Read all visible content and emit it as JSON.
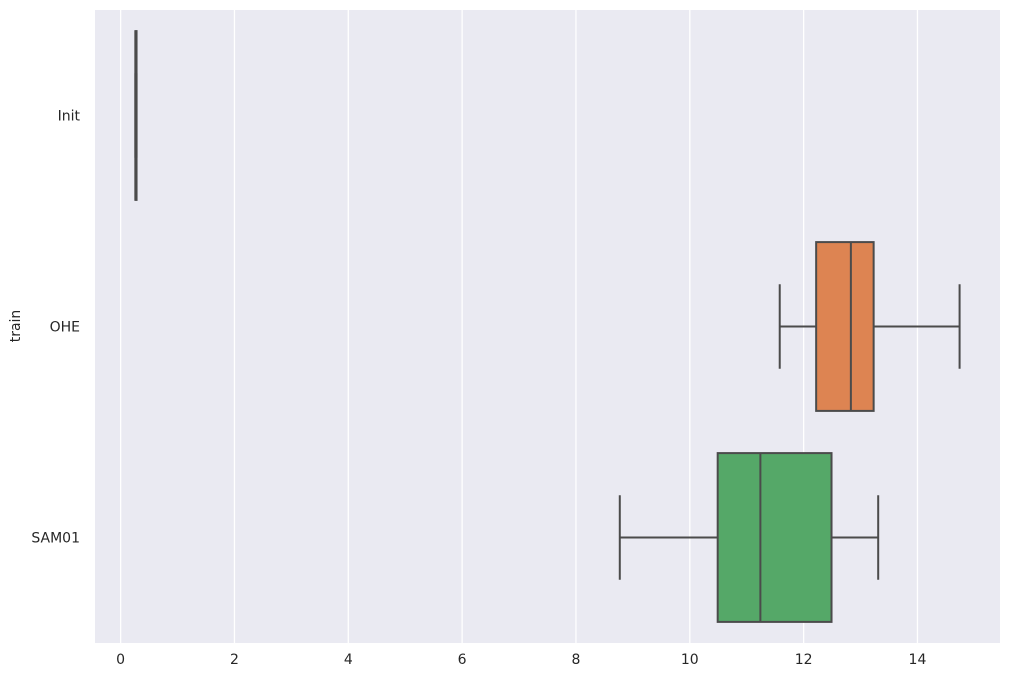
{
  "chart_data": {
    "type": "box",
    "orientation": "horizontal",
    "title": "",
    "xlabel": "",
    "ylabel": "train",
    "xlim": [
      -0.45,
      15.45
    ],
    "xticks": [
      0,
      2,
      4,
      6,
      8,
      10,
      12,
      14
    ],
    "grid": true,
    "legend": "none",
    "categories": [
      "Init",
      "OHE",
      "SAM01"
    ],
    "boxes": [
      {
        "category": "Init",
        "whisker_low": 0.26,
        "q1": 0.26,
        "median": 0.26,
        "q3": 0.28,
        "whisker_high": 0.28,
        "color": "#4c72b0"
      },
      {
        "category": "OHE",
        "whisker_low": 11.58,
        "q1": 12.22,
        "median": 12.83,
        "q3": 13.23,
        "whisker_high": 14.74,
        "color": "#dd8452"
      },
      {
        "category": "SAM01",
        "whisker_low": 8.77,
        "q1": 10.49,
        "median": 11.24,
        "q3": 12.49,
        "whisker_high": 13.31,
        "color": "#55a868"
      }
    ],
    "colors": {
      "background": "#eaeaf2",
      "grid": "#ffffff",
      "line": "#4b4b4b"
    }
  }
}
